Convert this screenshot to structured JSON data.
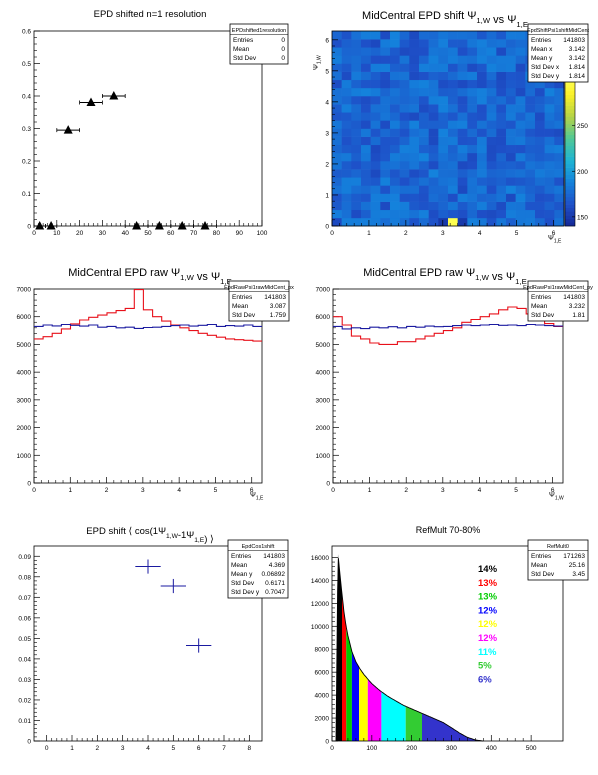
{
  "chart_data": [
    {
      "type": "scatter",
      "title": "EPD shifted n=1 resolution",
      "xlim": [
        0,
        100
      ],
      "ylim": [
        0,
        0.6
      ],
      "xticks": [
        "0",
        "10",
        "20",
        "30",
        "40",
        "50",
        "60",
        "70",
        "80",
        "90",
        "100"
      ],
      "yticks": [
        "0",
        "0.1",
        "0.2",
        "0.3",
        "0.4",
        "0.5",
        "0.6"
      ],
      "x": [
        2.5,
        7.5,
        15,
        25,
        35,
        45,
        55,
        65,
        75
      ],
      "xerr": [
        2.5,
        2.5,
        5,
        5,
        5,
        5,
        5,
        5,
        5
      ],
      "y": [
        0.0,
        0.0,
        0.295,
        0.38,
        0.4,
        0.0,
        0.0,
        0.0,
        0.0
      ],
      "stats": {
        "name": "EPDshifted1resolution",
        "rows": [
          [
            "Entries",
            "0"
          ],
          [
            "Mean",
            "0"
          ],
          [
            "Std Dev",
            "0"
          ]
        ]
      }
    },
    {
      "type": "heatmap",
      "title": "MidCentral EPD shift",
      "title_math": [
        "Ψ",
        "1,W",
        " vs ",
        "Ψ",
        "1,E"
      ],
      "xlabel": "Ψ",
      "xlabel_sub": "1,E",
      "ylabel": "Ψ",
      "ylabel_sub": "1,W",
      "xlim": [
        0,
        6.2832
      ],
      "ylim": [
        0,
        6.2832
      ],
      "xticks": [
        "0",
        "1",
        "2",
        "3",
        "4",
        "5",
        "6"
      ],
      "yticks": [
        "0",
        "1",
        "2",
        "3",
        "4",
        "5",
        "6"
      ],
      "zlim": [
        140,
        300
      ],
      "zticks": [
        "150",
        "200",
        "250"
      ],
      "nbins": 24,
      "hot_bin": [
        12,
        0
      ],
      "hot_value": 300,
      "stats": {
        "name": "EpdShiftPsi1shiftMidCent",
        "rows": [
          [
            "Entries",
            "141803"
          ],
          [
            "Mean x",
            "3.142"
          ],
          [
            "Mean y",
            "3.142"
          ],
          [
            "Std Dev x",
            "1.814"
          ],
          [
            "Std Dev y",
            "1.814"
          ]
        ]
      }
    },
    {
      "type": "line",
      "title": "MidCentral EPD raw",
      "title_math": [
        "Ψ",
        "1,W",
        " vs ",
        "Ψ",
        "1,E"
      ],
      "xlabel": "Ψ",
      "xlabel_sub": "1,E",
      "xlim": [
        0,
        6.2832
      ],
      "ylim": [
        0,
        7000
      ],
      "xticks": [
        "0",
        "1",
        "2",
        "3",
        "4",
        "5",
        "6"
      ],
      "yticks": [
        "0",
        "1000",
        "2000",
        "3000",
        "4000",
        "5000",
        "6000",
        "7000"
      ],
      "series": [
        {
          "color": "#e8101a",
          "values": [
            5200,
            5280,
            5400,
            5560,
            5740,
            5880,
            5980,
            6060,
            6140,
            6220,
            6300,
            6980,
            6250,
            6000,
            5840,
            5700,
            5600,
            5500,
            5400,
            5330,
            5260,
            5200,
            5170,
            5150,
            5120
          ]
        },
        {
          "color": "#1a1aa0",
          "values": [
            5650,
            5700,
            5670,
            5720,
            5690,
            5660,
            5700,
            5620,
            5650,
            5600,
            5620,
            5580,
            5610,
            5620,
            5650,
            5680,
            5700,
            5660,
            5690,
            5720,
            5650,
            5680,
            5660,
            5700,
            5650
          ]
        }
      ],
      "stats": {
        "name": "EpdRawPsi1rawMidCent_px",
        "rows": [
          [
            "Entries",
            "141803"
          ],
          [
            "Mean",
            "3.087"
          ],
          [
            "Std Dev",
            "1.759"
          ]
        ]
      }
    },
    {
      "type": "line",
      "title": "MidCentral EPD raw",
      "title_math": [
        "Ψ",
        "1,W",
        " vs ",
        "Ψ",
        "1,E"
      ],
      "xlabel": "Ψ",
      "xlabel_sub": "1,W",
      "xlim": [
        0,
        6.2832
      ],
      "ylim": [
        0,
        7000
      ],
      "xticks": [
        "0",
        "1",
        "2",
        "3",
        "4",
        "5",
        "6"
      ],
      "yticks": [
        "0",
        "1000",
        "2000",
        "3000",
        "4000",
        "5000",
        "6000",
        "7000"
      ],
      "series": [
        {
          "color": "#e8101a",
          "values": [
            6000,
            5700,
            5300,
            5200,
            5050,
            5000,
            5000,
            5100,
            5100,
            5200,
            5300,
            5400,
            5500,
            5600,
            5800,
            5900,
            6000,
            6100,
            6250,
            6350,
            6300,
            6100,
            6000,
            5750,
            5650
          ]
        },
        {
          "color": "#1a1aa0",
          "values": [
            5650,
            5560,
            5600,
            5570,
            5620,
            5600,
            5640,
            5600,
            5650,
            5620,
            5660,
            5640,
            5650,
            5680,
            5700,
            5680,
            5700,
            5720,
            5690,
            5700,
            5680,
            5720,
            5700,
            5680,
            5660
          ]
        }
      ],
      "stats": {
        "name": "EpdRawPsi1rawMidCent_py",
        "rows": [
          [
            "Entries",
            "141803"
          ],
          [
            "Mean",
            "3.232"
          ],
          [
            "Std Dev",
            "1.81"
          ]
        ]
      }
    },
    {
      "type": "scatter",
      "title": "EPD shift",
      "title_math": [
        "⟨ cos(1",
        "Ψ",
        "1,W",
        "-1",
        "Ψ",
        "1,E",
        ") ⟩"
      ],
      "xlim": [
        -0.5,
        8.5
      ],
      "ylim": [
        0,
        0.095
      ],
      "xticks": [
        "0",
        "1",
        "2",
        "3",
        "4",
        "5",
        "6",
        "7",
        "8"
      ],
      "yticks": [
        "0",
        "0.01",
        "0.02",
        "0.03",
        "0.04",
        "0.05",
        "0.06",
        "0.07",
        "0.08",
        "0.09"
      ],
      "x": [
        4,
        5,
        6
      ],
      "xerr": [
        0.5,
        0.5,
        0.5
      ],
      "y": [
        0.085,
        0.0755,
        0.0465
      ],
      "yerr": [
        0.0015,
        0.0015,
        0.0015
      ],
      "stats": {
        "name": "EpdCos1shift",
        "rows": [
          [
            "Entries",
            "141803"
          ],
          [
            "Mean",
            "4.369"
          ],
          [
            "Mean y",
            "0.06892"
          ],
          [
            "Std Dev",
            "0.6171"
          ],
          [
            "Std Dev y",
            "0.7047"
          ]
        ]
      }
    },
    {
      "type": "area",
      "title": "RefMult 70-80%",
      "xlim": [
        0,
        580
      ],
      "ylim": [
        0,
        17000
      ],
      "xticks": [
        "0",
        "100",
        "200",
        "300",
        "400",
        "500"
      ],
      "yticks": [
        "0",
        "2000",
        "4000",
        "6000",
        "8000",
        "10000",
        "12000",
        "14000",
        "16000"
      ],
      "x": [
        10,
        15,
        20,
        25,
        30,
        35,
        40,
        50,
        60,
        70,
        80,
        90,
        100,
        120,
        140,
        160,
        180,
        200,
        220,
        240,
        260,
        280,
        300,
        320,
        340,
        360,
        380
      ],
      "values": [
        0,
        16300,
        14500,
        12800,
        11300,
        10100,
        9200,
        7800,
        6900,
        6300,
        5800,
        5400,
        5000,
        4400,
        3900,
        3500,
        3100,
        2800,
        2500,
        2200,
        1900,
        1600,
        1150,
        700,
        320,
        90,
        0
      ],
      "bands": [
        {
          "from": 10,
          "to": 25,
          "color": "#000000"
        },
        {
          "from": 25,
          "to": 36,
          "color": "#ff0000"
        },
        {
          "from": 36,
          "to": 50,
          "color": "#00cc00"
        },
        {
          "from": 50,
          "to": 68,
          "color": "#0000ff"
        },
        {
          "from": 68,
          "to": 90,
          "color": "#ffff00"
        },
        {
          "from": 90,
          "to": 124,
          "color": "#ff00ff"
        },
        {
          "from": 124,
          "to": 185,
          "color": "#00ffff"
        },
        {
          "from": 185,
          "to": 226,
          "color": "#33cc33"
        },
        {
          "from": 226,
          "to": 380,
          "color": "#3333cc"
        }
      ],
      "legend_labels": [
        {
          "text": "14%",
          "color": "#000000"
        },
        {
          "text": "13%",
          "color": "#ff0000"
        },
        {
          "text": "13%",
          "color": "#00cc00"
        },
        {
          "text": "12%",
          "color": "#0000ff"
        },
        {
          "text": "12%",
          "color": "#ffff00"
        },
        {
          "text": "12%",
          "color": "#ff00ff"
        },
        {
          "text": "11%",
          "color": "#00ffff"
        },
        {
          "text": "5%",
          "color": "#33cc33"
        },
        {
          "text": "6%",
          "color": "#3333cc"
        }
      ],
      "stats": {
        "name": "RefMult0",
        "rows": [
          [
            "Entries",
            "171263"
          ],
          [
            "Mean",
            "25.16"
          ],
          [
            "Std Dev",
            "3.45"
          ]
        ]
      }
    }
  ]
}
